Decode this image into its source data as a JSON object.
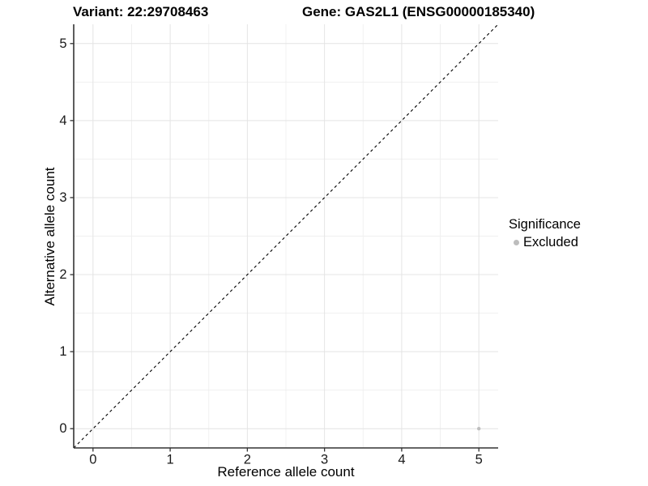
{
  "chart_data": {
    "type": "scatter",
    "titles": {
      "left": "Variant: 22:29708463",
      "right": "Gene: GAS2L1 (ENSG00000185340)"
    },
    "xlabel": "Reference allele count",
    "ylabel": "Alternative allele count",
    "xlim": [
      -0.25,
      5.25
    ],
    "ylim": [
      -0.25,
      5.25
    ],
    "xticks": [
      0,
      1,
      2,
      3,
      4,
      5
    ],
    "yticks": [
      0,
      1,
      2,
      3,
      4,
      5
    ],
    "minor_ticks": [
      0.5,
      1.5,
      2.5,
      3.5,
      4.5
    ],
    "grid": "major+minor",
    "identity_line": {
      "style": "dashed",
      "equation": "y = x",
      "color": "#000000"
    },
    "series": [
      {
        "name": "Excluded",
        "color": "#bdbdbd",
        "points": [
          [
            5,
            0
          ]
        ]
      }
    ],
    "legend": {
      "title": "Significance",
      "position": "right",
      "entries": [
        {
          "label": "Excluded",
          "color": "#bdbdbd",
          "marker": "circle"
        }
      ]
    }
  },
  "colors": {
    "axis_line": "#333333",
    "tick_mark": "#333333",
    "tick_text": "#1a1a1a",
    "grid_major": "#e4e4e4",
    "grid_minor": "#f0f0f0",
    "title_text": "#000000"
  }
}
